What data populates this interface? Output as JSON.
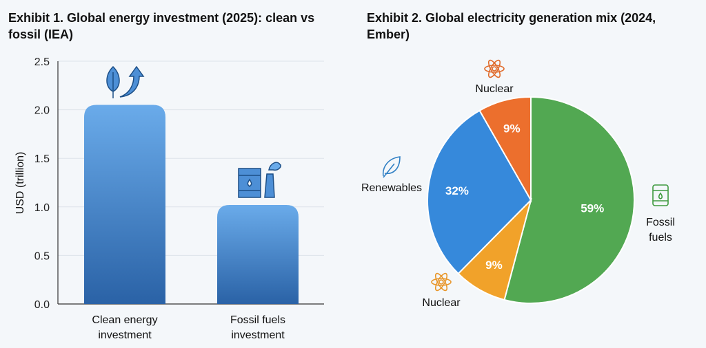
{
  "chart_data": [
    {
      "type": "bar",
      "title": "Exhibit 1. Global energy investment (2025): clean vs fossil (IEA)",
      "xlabel": "",
      "ylabel": "USD (trillion)",
      "ylim": [
        0,
        2.5
      ],
      "yticks": [
        "0.0",
        "0.5",
        "1.0",
        "1.5",
        "2.0",
        "2.5"
      ],
      "grid": true,
      "categories": [
        [
          "Clean energy",
          "investment"
        ],
        [
          "Fossil fuels",
          "investment"
        ]
      ],
      "values": [
        2.05,
        1.02
      ],
      "icons": [
        "leaf-arrow-icon",
        "oil-barrel-factory-icon"
      ],
      "bar_color": "#4a8fd8"
    },
    {
      "type": "pie",
      "title": "Exhibit 2. Global electricity generation mix (2024, Ember)",
      "slices": [
        {
          "label": "Fossil fuels",
          "display": [
            "Fossil",
            "fuels"
          ],
          "value": 59,
          "text": "59%",
          "color": "#52a852",
          "icon": "oil-barrel-icon"
        },
        {
          "label": "Nuclear",
          "display": [
            "Nuclear"
          ],
          "value": 9,
          "text": "9%",
          "color": "#f1a22a",
          "icon": "atom-icon"
        },
        {
          "label": "Renewables",
          "display": [
            "Renewables"
          ],
          "value": 32,
          "text": "32%",
          "color": "#3689db",
          "icon": "leaf-icon"
        },
        {
          "label": "Nuclear",
          "display": [
            "Nuclear"
          ],
          "value": 9,
          "text": "9%",
          "color": "#ec6f2d",
          "icon": "atom-icon"
        }
      ]
    }
  ]
}
